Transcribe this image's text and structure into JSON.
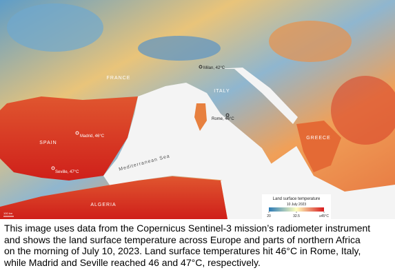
{
  "map": {
    "countries": [
      "FRANCE",
      "ITALY",
      "SPAIN",
      "GREECE",
      "ALGERIA"
    ],
    "cities": [
      "Milan, 42°C",
      "Rome, 46°C",
      "Madrid, 46°C",
      "Seville, 47°C"
    ],
    "sea": "Mediterranean Sea",
    "scale": "100 km",
    "legend": {
      "title": "Land surface temperature",
      "date": "10 July 2023",
      "ticks": [
        20,
        32.5,
        {
          "value": 45,
          "label": "≥45°C"
        }
      ]
    }
  },
  "caption": {
    "lines": [
      "This image uses data from the Copernicus Sentinel-3 mission’s radiometer instrument",
      "and shows the land surface temperature across Europe and parts of northern Africa",
      "on the morning of July 10, 2023. Land surface temperatures hit 46°C in Rome, Italy,",
      "while Madrid and Seville reached 46 and 47°C, respectively."
    ]
  }
}
